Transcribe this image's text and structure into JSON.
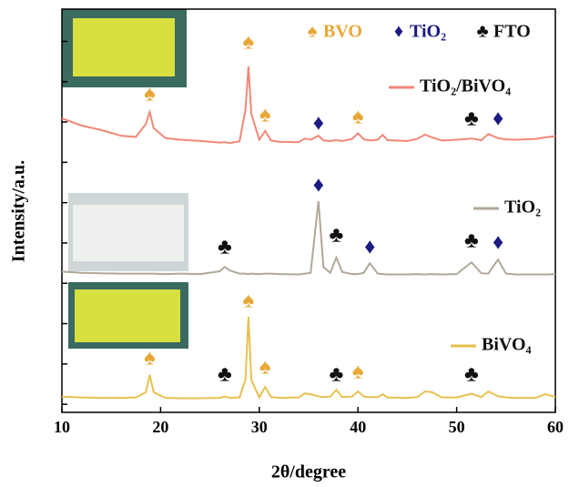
{
  "chart_data": {
    "type": "line",
    "xlabel": "2θ/degree",
    "ylabel": "Intensity/a.u.",
    "xlim": [
      10,
      60
    ],
    "xticks": [
      10,
      20,
      30,
      40,
      50,
      60
    ],
    "ylim": [
      0,
      100
    ],
    "yticks": [
      2,
      12,
      22,
      32,
      42,
      52,
      62,
      72,
      82,
      92
    ],
    "x": [
      10,
      12,
      14,
      16,
      17.5,
      18.5,
      18.9,
      19.3,
      20.5,
      22,
      24,
      26,
      26.5,
      27,
      28,
      28.6,
      28.9,
      29.2,
      30,
      30.6,
      31.2,
      32,
      34,
      34.6,
      35.2,
      36.0,
      36.5,
      37.2,
      37.8,
      38.4,
      39.4,
      40,
      40.6,
      41.2,
      42,
      42.5,
      43,
      45,
      46,
      46.8,
      47.5,
      48.5,
      50,
      51.5,
      52.5,
      53.2,
      54.2,
      55,
      56,
      58,
      59,
      60
    ],
    "series": [
      {
        "name": "TiO₂/BiVO₄",
        "color": "#f08878",
        "values": [
          72.9,
          71.1,
          70.0,
          68.6,
          68.3,
          71.5,
          74.5,
          70.5,
          68.0,
          67.6,
          67.3,
          66.9,
          67.0,
          66.8,
          67.2,
          75.0,
          85.8,
          74.0,
          67.6,
          69.8,
          67.4,
          67.1,
          67.0,
          67.9,
          67.6,
          68.6,
          67.4,
          67.3,
          67.5,
          67.3,
          67.8,
          69.2,
          67.7,
          67.4,
          67.6,
          68.8,
          67.5,
          67.3,
          67.8,
          68.9,
          68.2,
          67.4,
          67.6,
          67.9,
          67.5,
          69.0,
          68.0,
          67.7,
          67.6,
          67.8,
          68.2,
          68.5
        ]
      },
      {
        "name": "TiO₂",
        "color": "#b0a898",
        "values": [
          34.9,
          34.6,
          34.5,
          34.4,
          34.4,
          34.4,
          34.4,
          34.4,
          34.3,
          34.4,
          34.3,
          35.0,
          36.1,
          35.2,
          34.4,
          34.4,
          34.3,
          34.4,
          34.3,
          34.4,
          34.4,
          34.3,
          34.2,
          34.4,
          34.6,
          52.4,
          36.0,
          34.6,
          38.4,
          34.8,
          34.3,
          34.3,
          34.6,
          37.0,
          34.4,
          34.3,
          34.2,
          34.2,
          34.3,
          34.2,
          34.3,
          34.2,
          34.3,
          37.2,
          34.5,
          34.4,
          37.9,
          34.4,
          34.2,
          34.2,
          34.2,
          34.3
        ]
      },
      {
        "name": "BiVO₄",
        "color": "#e8c050",
        "values": [
          3.9,
          3.7,
          3.6,
          3.6,
          3.7,
          5.0,
          9.3,
          5.0,
          3.6,
          3.5,
          3.5,
          3.6,
          3.9,
          3.6,
          3.7,
          8.0,
          23.7,
          8.0,
          3.7,
          6.3,
          3.8,
          3.6,
          3.7,
          4.7,
          4.5,
          4.0,
          3.8,
          3.9,
          5.6,
          3.8,
          3.9,
          5.2,
          3.9,
          3.8,
          3.8,
          4.5,
          3.7,
          3.6,
          3.8,
          5.2,
          5.0,
          3.7,
          3.7,
          4.6,
          3.8,
          5.2,
          4.0,
          3.7,
          3.6,
          3.6,
          4.5,
          3.8
        ]
      }
    ],
    "legend_symbols": [
      {
        "symbol": "♠",
        "label": "BVO",
        "color": "#e8a838"
      },
      {
        "symbol": "♦",
        "label": "TiO₂",
        "color": "#1a1a80"
      },
      {
        "symbol": "♣",
        "label": "FTO",
        "color": "#111111"
      }
    ],
    "annotations": [
      {
        "text": "♠",
        "x": 18.9,
        "y": 78.6,
        "color": "#e8a838"
      },
      {
        "text": "♠",
        "x": 28.9,
        "y": 91.4,
        "color": "#e8a838"
      },
      {
        "text": "♠",
        "x": 30.6,
        "y": 73.4,
        "color": "#e8a838"
      },
      {
        "text": "♦",
        "x": 36.0,
        "y": 71.3,
        "color": "#1a1a80"
      },
      {
        "text": "♠",
        "x": 40.0,
        "y": 72.9,
        "color": "#e8a838"
      },
      {
        "text": "♣",
        "x": 51.5,
        "y": 72.5,
        "color": "#111111"
      },
      {
        "text": "♦",
        "x": 54.2,
        "y": 72.5,
        "color": "#1a1a80"
      },
      {
        "text": "♦",
        "x": 36.0,
        "y": 56.0,
        "color": "#1a1a80"
      },
      {
        "text": "♣",
        "x": 26.5,
        "y": 40.6,
        "color": "#111111"
      },
      {
        "text": "♣",
        "x": 37.8,
        "y": 43.6,
        "color": "#111111"
      },
      {
        "text": "♦",
        "x": 41.2,
        "y": 40.6,
        "color": "#1a1a80"
      },
      {
        "text": "♣",
        "x": 51.5,
        "y": 42.2,
        "color": "#111111"
      },
      {
        "text": "♦",
        "x": 54.2,
        "y": 41.8,
        "color": "#1a1a80"
      },
      {
        "text": "♠",
        "x": 18.9,
        "y": 13.1,
        "color": "#e8a838"
      },
      {
        "text": "♠",
        "x": 28.9,
        "y": 27.3,
        "color": "#e8a838"
      },
      {
        "text": "♣",
        "x": 26.5,
        "y": 9.0,
        "color": "#111111"
      },
      {
        "text": "♠",
        "x": 30.6,
        "y": 10.8,
        "color": "#e8a838"
      },
      {
        "text": "♣",
        "x": 37.8,
        "y": 9.0,
        "color": "#111111"
      },
      {
        "text": "♠",
        "x": 40.0,
        "y": 9.7,
        "color": "#e8a838"
      },
      {
        "text": "♣",
        "x": 51.5,
        "y": 9.0,
        "color": "#111111"
      }
    ]
  }
}
